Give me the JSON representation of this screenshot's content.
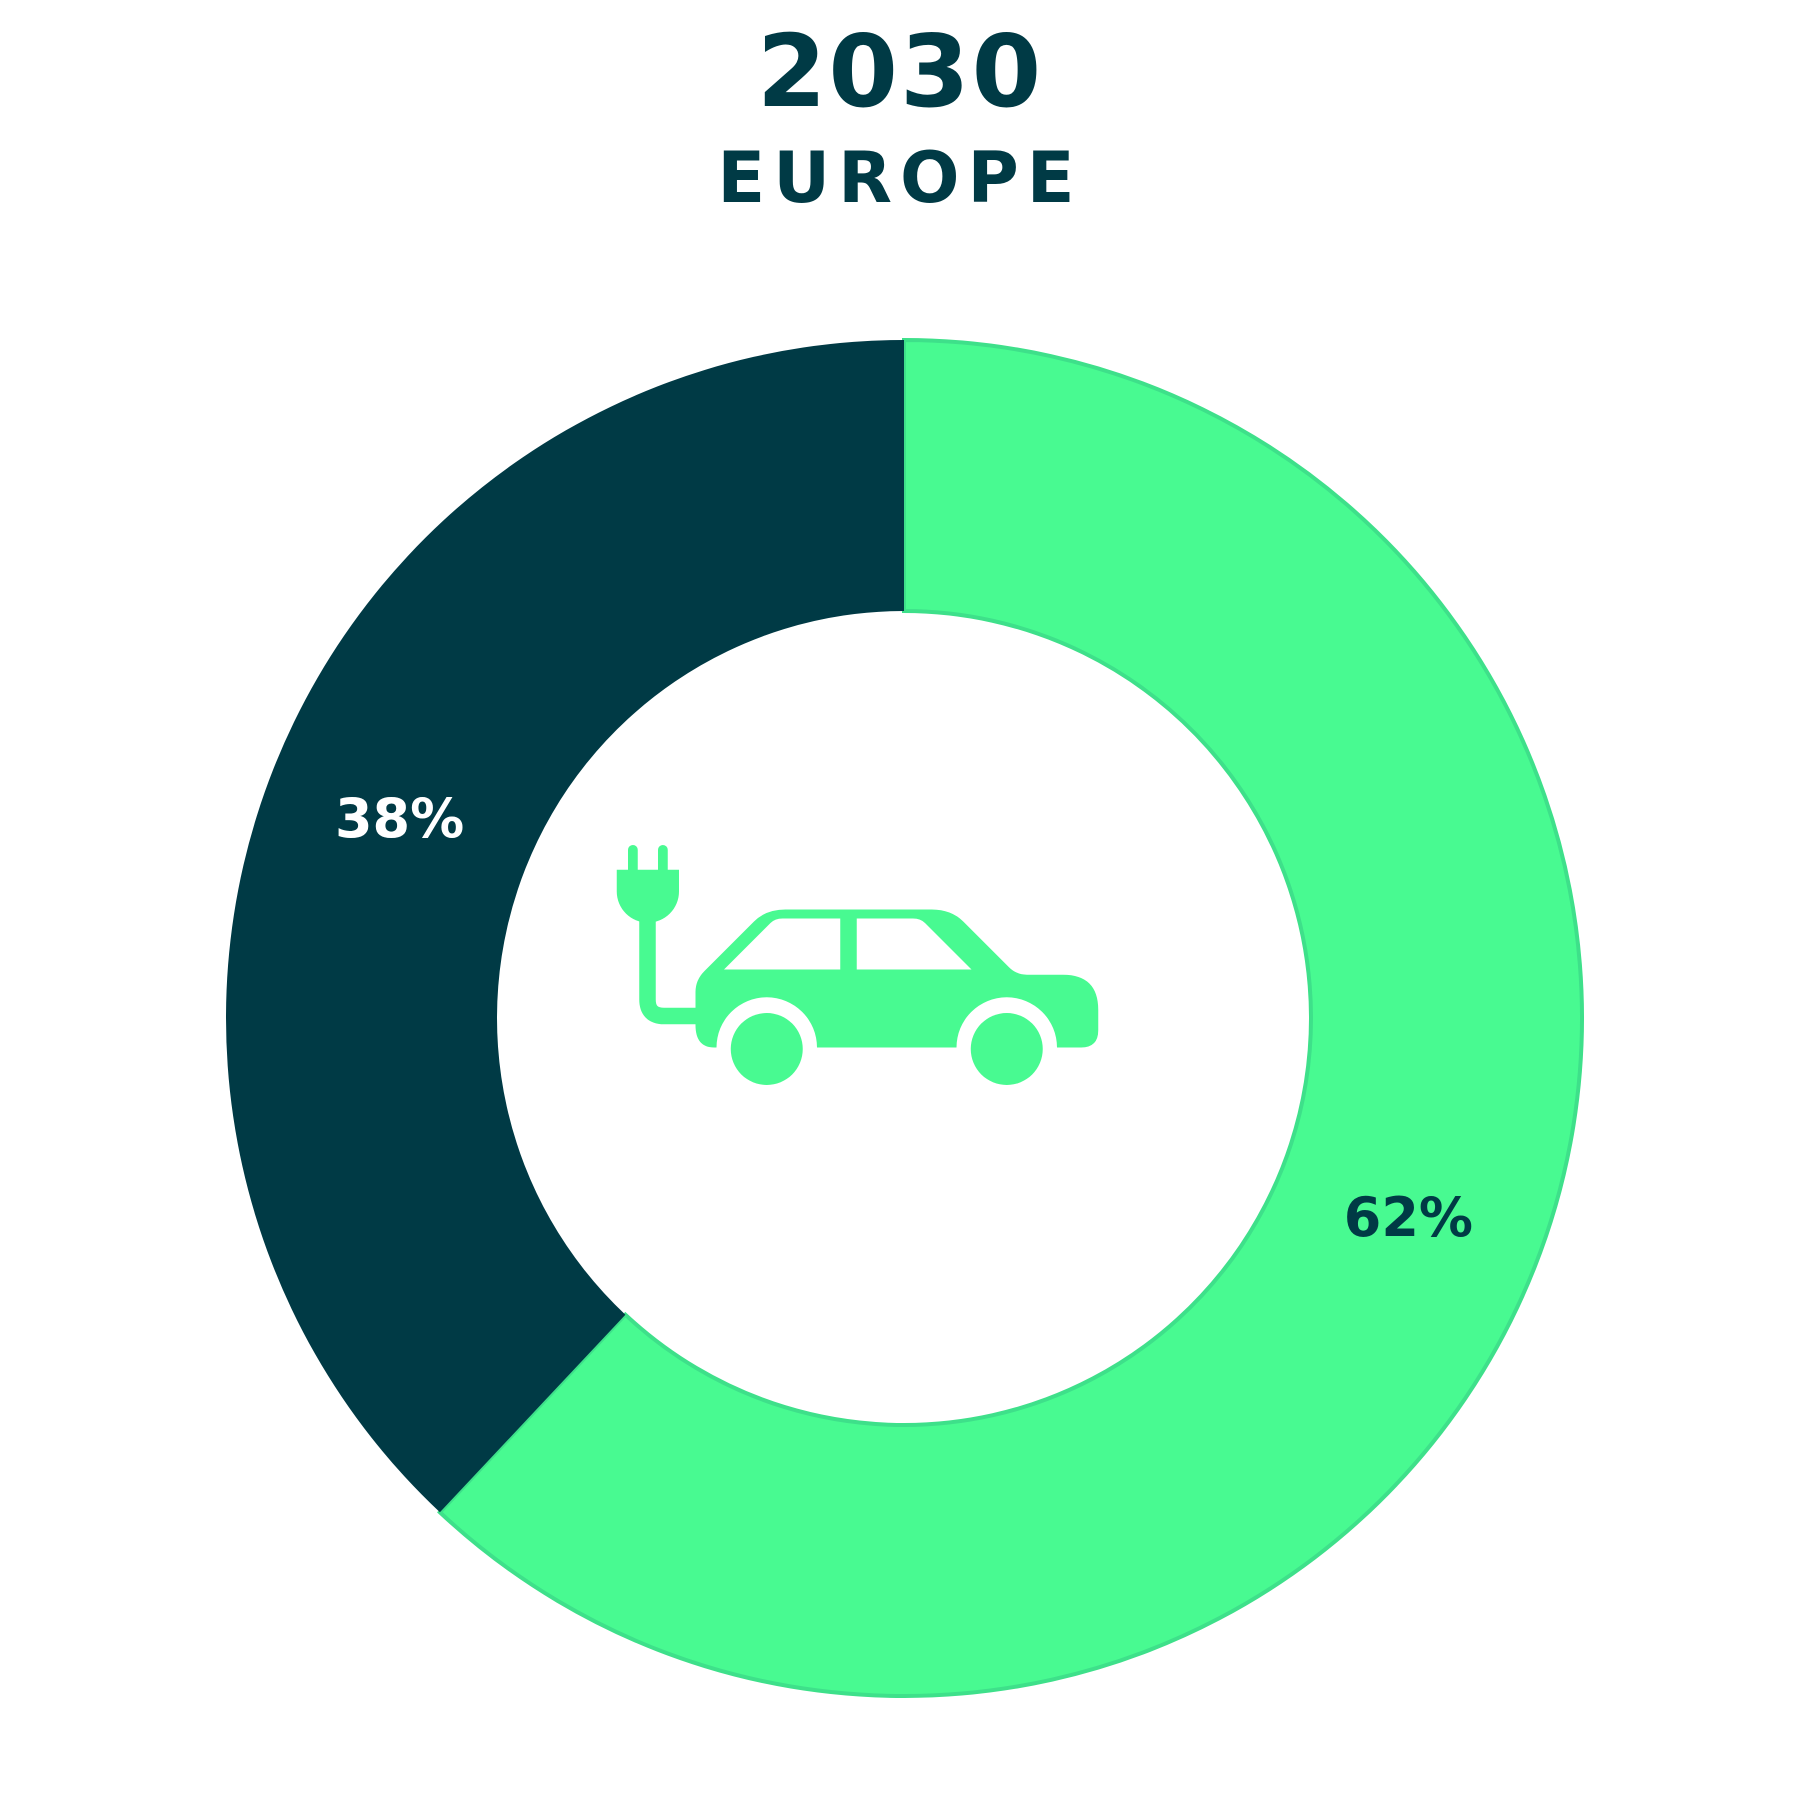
{
  "header": {
    "year": "2030",
    "region": "EUROPE"
  },
  "colors": {
    "dark": "#003a45",
    "green": "#48fa91",
    "green_edge": "#3ee08a",
    "background": "#ffffff",
    "label_on_dark": "#ffffff",
    "label_on_green": "#003a45"
  },
  "center_icon": "electric-car-icon",
  "chart_data": {
    "type": "pie",
    "style": "donut",
    "title": "2030",
    "subtitle": "EUROPE",
    "start_angle_deg": 0,
    "direction": "clockwise",
    "slices": [
      {
        "value": 62,
        "label": "62%",
        "color": "#48fa91",
        "label_color": "#003a45"
      },
      {
        "value": 38,
        "label": "38%",
        "color": "#003a45",
        "label_color": "#ffffff"
      }
    ],
    "legend": "none"
  }
}
